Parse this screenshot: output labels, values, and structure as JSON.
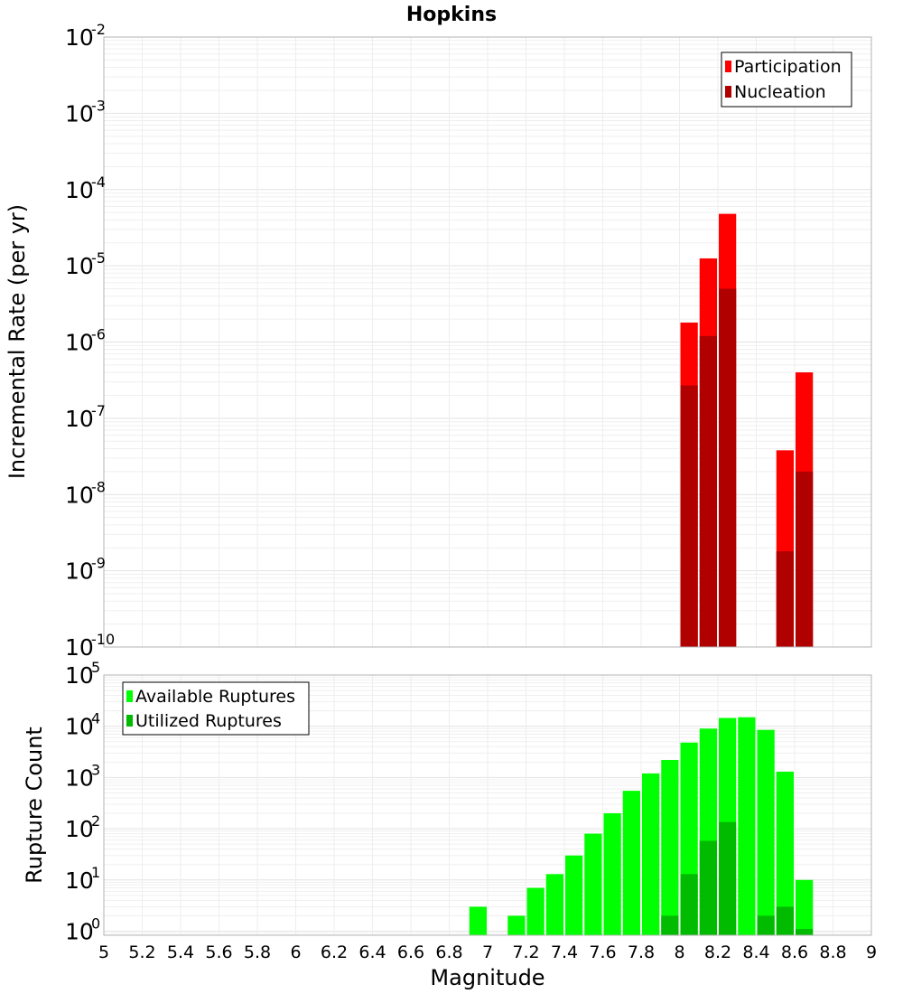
{
  "chart_data": [
    {
      "type": "bar",
      "scale": "log",
      "title": "Hopkins",
      "xlabel": "Magnitude",
      "ylabel": "Incremental Rate (per yr)",
      "xlim": [
        5,
        9
      ],
      "ylim_exp": [
        -10,
        -2
      ],
      "ytick_labels": [
        {
          "exp": -10,
          "base": "10",
          "sup": "-10"
        },
        {
          "exp": -9,
          "base": "10",
          "sup": "-9"
        },
        {
          "exp": -8,
          "base": "10",
          "sup": "-8"
        },
        {
          "exp": -7,
          "base": "10",
          "sup": "-7"
        },
        {
          "exp": -6,
          "base": "10",
          "sup": "-6"
        },
        {
          "exp": -5,
          "base": "10",
          "sup": "-5"
        },
        {
          "exp": -4,
          "base": "10",
          "sup": "-4"
        },
        {
          "exp": -3,
          "base": "10",
          "sup": "-3"
        },
        {
          "exp": -2,
          "base": "10",
          "sup": "-2"
        }
      ],
      "legend": [
        "Participation",
        "Nucleation"
      ],
      "legend_position": "top-right",
      "series": [
        {
          "name": "Participation",
          "color": "#ff0000",
          "x": [
            8.05,
            8.15,
            8.25,
            8.55,
            8.65
          ],
          "values": [
            1.8e-06,
            1.25e-05,
            4.8e-05,
            3.8e-08,
            4e-07
          ]
        },
        {
          "name": "Nucleation",
          "color": "#b00000",
          "x": [
            8.05,
            8.15,
            8.25,
            8.55,
            8.65
          ],
          "values": [
            2.7e-07,
            1.2e-06,
            5e-06,
            1.8e-09,
            2e-08
          ]
        }
      ]
    },
    {
      "type": "bar",
      "scale": "log",
      "xlabel": "Magnitude",
      "ylabel": "Rupture Count",
      "xlim": [
        5,
        9
      ],
      "ylim_exp": [
        -0.08,
        5
      ],
      "ytick_labels": [
        {
          "exp": 0,
          "base": "10",
          "sup": "0"
        },
        {
          "exp": 1,
          "base": "10",
          "sup": "1"
        },
        {
          "exp": 2,
          "base": "10",
          "sup": "2"
        },
        {
          "exp": 3,
          "base": "10",
          "sup": "3"
        },
        {
          "exp": 4,
          "base": "10",
          "sup": "4"
        },
        {
          "exp": 5,
          "base": "10",
          "sup": "5"
        }
      ],
      "xtick_labels": [
        "5",
        "5.2",
        "5.4",
        "5.6",
        "5.8",
        "6",
        "6.2",
        "6.4",
        "6.6",
        "6.8",
        "7",
        "7.2",
        "7.4",
        "7.6",
        "7.8",
        "8",
        "8.2",
        "8.4",
        "8.6",
        "8.8",
        "9"
      ],
      "legend": [
        "Available Ruptures",
        "Utilized Ruptures"
      ],
      "legend_position": "top-left",
      "series": [
        {
          "name": "Available Ruptures",
          "color": "#00ff00",
          "x": [
            6.95,
            7.15,
            7.25,
            7.35,
            7.45,
            7.55,
            7.65,
            7.75,
            7.85,
            7.95,
            8.05,
            8.15,
            8.25,
            8.35,
            8.45,
            8.55,
            8.65
          ],
          "values": [
            3,
            2,
            7,
            13,
            30,
            80,
            200,
            550,
            1200,
            2200,
            4800,
            9000,
            14500,
            15000,
            8500,
            1300,
            10
          ]
        },
        {
          "name": "Utilized Ruptures",
          "color": "#00bb00",
          "x": [
            7.95,
            8.05,
            8.15,
            8.25,
            8.45,
            8.55,
            8.65
          ],
          "values": [
            2,
            13,
            58,
            135,
            2,
            3,
            1.1
          ]
        }
      ]
    }
  ]
}
